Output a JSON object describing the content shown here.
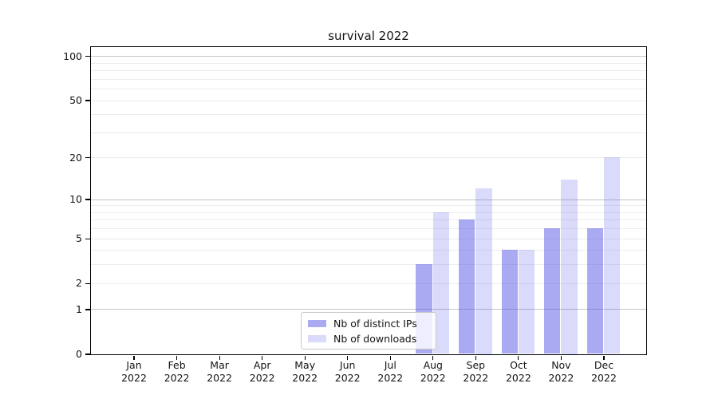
{
  "chart_data": {
    "type": "bar",
    "title": "survival 2022",
    "categories": [
      "Jan 2022",
      "Feb 2022",
      "Mar 2022",
      "Apr 2022",
      "May 2022",
      "Jun 2022",
      "Jul 2022",
      "Aug 2022",
      "Sep 2022",
      "Oct 2022",
      "Nov 2022",
      "Dec 2022"
    ],
    "series": [
      {
        "name": "Nb of distinct IPs",
        "color": "rgba(85,85,230,0.5)",
        "values": [
          0,
          0,
          0,
          0,
          0,
          0,
          0,
          3,
          7,
          4,
          6,
          6
        ]
      },
      {
        "name": "Nb of downloads",
        "color": "rgba(85,85,230,0.22)",
        "values": [
          0,
          0,
          0,
          0,
          0,
          0,
          0,
          8,
          12,
          4,
          14,
          20
        ]
      }
    ],
    "xlabel": "",
    "ylabel": "",
    "yscale": "symlog (pixel position proportional to log10(1+value))",
    "yticks_labeled": [
      0,
      1,
      2,
      5,
      10,
      20,
      50,
      100
    ],
    "ygrid_major": [
      1,
      10,
      100
    ],
    "ygrid_minor": [
      2,
      3,
      4,
      5,
      6,
      7,
      8,
      9,
      20,
      30,
      40,
      50,
      60,
      70,
      80,
      90
    ],
    "ylim": [
      0,
      116
    ],
    "grid": true,
    "legend_position": "lower center"
  },
  "style": {
    "grid_major_color": "#c4c4c4",
    "grid_minor_color": "#ededed",
    "spine_color": "#000000",
    "text_color": "#141414"
  }
}
